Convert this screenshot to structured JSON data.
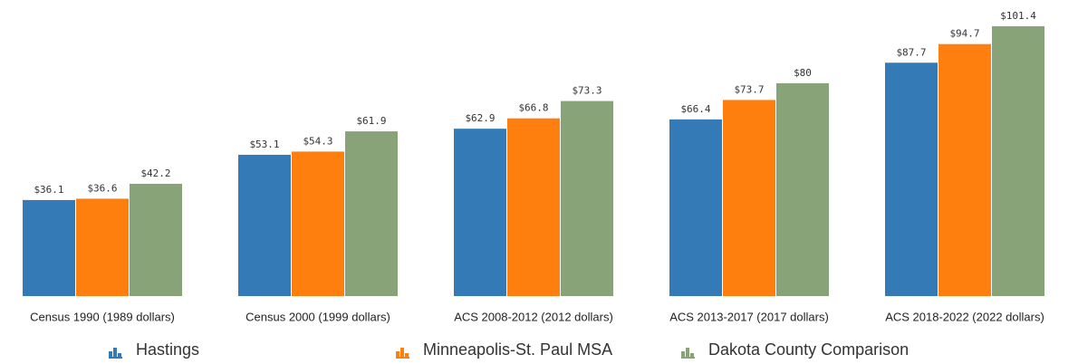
{
  "chart_data": {
    "type": "bar",
    "categories": [
      "Census 1990 (1989 dollars)",
      "Census 2000 (1999 dollars)",
      "ACS 2008-2012 (2012 dollars)",
      "ACS 2013-2017 (2017 dollars)",
      "ACS 2018-2022 (2022 dollars)"
    ],
    "series": [
      {
        "name": "Hastings",
        "color": "#337ab7",
        "values": [
          36.1,
          53.1,
          62.9,
          66.4,
          87.7
        ],
        "value_labels": [
          "$36.1",
          "$53.1",
          "$62.9",
          "$66.4",
          "$87.7"
        ]
      },
      {
        "name": "Minneapolis-St. Paul MSA",
        "color": "#ff7f0e",
        "values": [
          36.6,
          54.3,
          66.8,
          73.7,
          94.7
        ],
        "value_labels": [
          "$36.6",
          "$54.3",
          "$66.8",
          "$73.7",
          "$94.7"
        ]
      },
      {
        "name": "Dakota County Comparison",
        "color": "#88a377",
        "values": [
          42.2,
          61.9,
          73.3,
          80,
          101.4
        ],
        "value_labels": [
          "$42.2",
          "$61.9",
          "$73.3",
          "$80",
          "$101.4"
        ]
      }
    ],
    "legend": "bottom"
  }
}
